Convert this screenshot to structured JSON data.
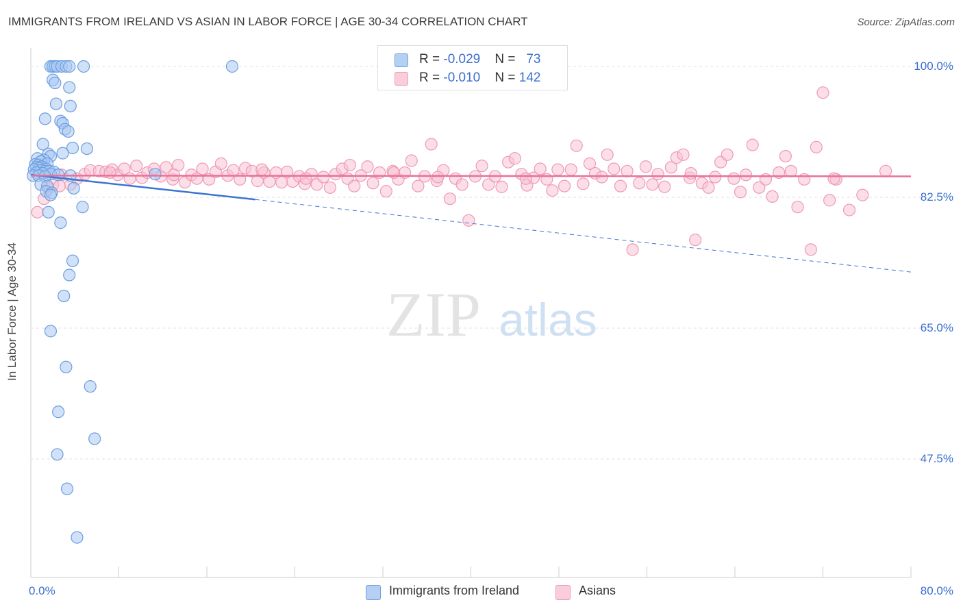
{
  "title": "IMMIGRANTS FROM IRELAND VS ASIAN IN LABOR FORCE | AGE 30-34 CORRELATION CHART",
  "source": "Source: ZipAtlas.com",
  "watermark": {
    "zip": "ZIP",
    "atlas": "atlas"
  },
  "legend": {
    "ireland": {
      "r_label": "R = ",
      "r_value": "-0.029",
      "n_label": "N = ",
      "n_value": "73"
    },
    "asians": {
      "r_label": "R = ",
      "r_value": "-0.010",
      "n_label": "N = ",
      "n_value": "142"
    }
  },
  "bottom_legend": {
    "ireland": "Immigrants from Ireland",
    "asians": "Asians"
  },
  "colors": {
    "ireland_fill": "#a9c8f2",
    "ireland_stroke": "#6b9ee0",
    "ireland_line": "#3b74d4",
    "asians_fill": "#f8c3d3",
    "asians_stroke": "#ee9ab4",
    "asians_line": "#e9709a",
    "axis_text": "#3b6fcf",
    "grid": "#e0e0e0"
  },
  "chart_data": {
    "type": "scatter",
    "title": "IMMIGRANTS FROM IRELAND VS ASIAN IN LABOR FORCE | AGE 30-34 CORRELATION CHART",
    "xlabel": "",
    "ylabel": "In Labor Force | Age 30-34",
    "xlim": [
      0,
      80
    ],
    "ylim": [
      32,
      102
    ],
    "x_tick_labels": [
      "0.0%",
      "80.0%"
    ],
    "y_ticks": [
      47.5,
      65.0,
      82.5,
      100.0
    ],
    "y_tick_labels": [
      "47.5%",
      "65.0%",
      "82.5%",
      "100.0%"
    ],
    "series": [
      {
        "name": "Immigrants from Ireland",
        "R": -0.029,
        "N": 73,
        "trend": {
          "x": [
            0,
            20.4
          ],
          "y": [
            85.5,
            82.2
          ]
        },
        "trend_dashed": {
          "x": [
            20.4,
            80
          ],
          "y": [
            82.2,
            72.5
          ]
        },
        "points": [
          [
            1.8,
            100
          ],
          [
            2.0,
            100
          ],
          [
            2.2,
            100
          ],
          [
            2.4,
            100
          ],
          [
            2.8,
            100
          ],
          [
            3.2,
            100
          ],
          [
            3.5,
            100
          ],
          [
            4.8,
            100
          ],
          [
            18.3,
            100
          ],
          [
            2.0,
            98.2
          ],
          [
            2.2,
            97.8
          ],
          [
            3.5,
            97.2
          ],
          [
            2.3,
            95.0
          ],
          [
            3.6,
            94.7
          ],
          [
            1.3,
            93.0
          ],
          [
            2.7,
            92.7
          ],
          [
            2.9,
            92.4
          ],
          [
            3.1,
            91.6
          ],
          [
            3.4,
            91.3
          ],
          [
            1.1,
            89.6
          ],
          [
            3.8,
            89.1
          ],
          [
            5.1,
            89.0
          ],
          [
            2.9,
            88.4
          ],
          [
            1.6,
            88.3
          ],
          [
            1.8,
            88.0
          ],
          [
            0.6,
            87.7
          ],
          [
            1.2,
            87.5
          ],
          [
            0.9,
            87.3
          ],
          [
            1.5,
            87.0
          ],
          [
            0.4,
            86.9
          ],
          [
            0.7,
            86.8
          ],
          [
            1.0,
            86.6
          ],
          [
            0.5,
            86.5
          ],
          [
            0.8,
            86.4
          ],
          [
            1.4,
            86.3
          ],
          [
            0.3,
            86.2
          ],
          [
            0.9,
            86.1
          ],
          [
            1.3,
            86.0
          ],
          [
            1.7,
            86.0
          ],
          [
            2.1,
            85.9
          ],
          [
            0.5,
            85.8
          ],
          [
            1.1,
            85.7
          ],
          [
            1.8,
            85.6
          ],
          [
            2.5,
            85.5
          ],
          [
            0.2,
            85.4
          ],
          [
            0.7,
            85.4
          ],
          [
            1.3,
            85.3
          ],
          [
            3.6,
            85.4
          ],
          [
            11.3,
            85.6
          ],
          [
            0.9,
            84.2
          ],
          [
            1.5,
            84.0
          ],
          [
            3.9,
            83.7
          ],
          [
            1.4,
            83.3
          ],
          [
            1.9,
            83.1
          ],
          [
            1.8,
            82.8
          ],
          [
            4.7,
            81.2
          ],
          [
            1.6,
            80.5
          ],
          [
            2.7,
            79.1
          ],
          [
            3.8,
            74.0
          ],
          [
            3.5,
            72.1
          ],
          [
            3.0,
            69.3
          ],
          [
            1.8,
            64.6
          ],
          [
            3.2,
            59.8
          ],
          [
            5.4,
            57.2
          ],
          [
            2.5,
            53.8
          ],
          [
            5.8,
            50.2
          ],
          [
            2.4,
            48.1
          ],
          [
            3.3,
            43.5
          ],
          [
            4.2,
            37.0
          ]
        ]
      },
      {
        "name": "Asians",
        "R": -0.01,
        "N": 142,
        "trend": {
          "x": [
            0,
            80
          ],
          "y": [
            85.4,
            85.3
          ]
        },
        "points": [
          [
            0.6,
            80.5
          ],
          [
            1.2,
            82.3
          ],
          [
            1.6,
            83.7
          ],
          [
            2.0,
            84.2
          ],
          [
            2.8,
            85.5
          ],
          [
            3.6,
            84.2
          ],
          [
            4.2,
            85.0
          ],
          [
            4.9,
            85.6
          ],
          [
            5.4,
            86.1
          ],
          [
            6.2,
            86.0
          ],
          [
            6.8,
            85.9
          ],
          [
            7.4,
            86.2
          ],
          [
            7.9,
            85.5
          ],
          [
            8.5,
            86.3
          ],
          [
            9.0,
            85.0
          ],
          [
            9.6,
            86.7
          ],
          [
            10.1,
            85.1
          ],
          [
            10.6,
            85.8
          ],
          [
            11.2,
            86.3
          ],
          [
            11.8,
            85.3
          ],
          [
            12.3,
            86.5
          ],
          [
            12.9,
            84.9
          ],
          [
            13.4,
            86.8
          ],
          [
            14.0,
            84.5
          ],
          [
            14.6,
            85.5
          ],
          [
            15.1,
            85.0
          ],
          [
            15.6,
            86.3
          ],
          [
            16.2,
            84.9
          ],
          [
            16.8,
            85.9
          ],
          [
            17.3,
            87.0
          ],
          [
            17.9,
            85.4
          ],
          [
            18.4,
            86.1
          ],
          [
            19.0,
            84.9
          ],
          [
            19.5,
            86.4
          ],
          [
            20.1,
            86.0
          ],
          [
            20.6,
            84.7
          ],
          [
            21.2,
            85.8
          ],
          [
            21.7,
            84.6
          ],
          [
            22.3,
            85.8
          ],
          [
            22.8,
            84.5
          ],
          [
            23.3,
            85.9
          ],
          [
            23.8,
            84.6
          ],
          [
            24.4,
            85.3
          ],
          [
            24.9,
            84.3
          ],
          [
            25.5,
            85.6
          ],
          [
            26.0,
            84.2
          ],
          [
            26.6,
            85.2
          ],
          [
            27.2,
            83.8
          ],
          [
            27.7,
            85.6
          ],
          [
            28.3,
            86.3
          ],
          [
            28.8,
            85.0
          ],
          [
            29.4,
            84.0
          ],
          [
            30.0,
            85.4
          ],
          [
            30.6,
            86.6
          ],
          [
            31.1,
            84.4
          ],
          [
            31.7,
            85.8
          ],
          [
            32.3,
            83.3
          ],
          [
            32.9,
            86.0
          ],
          [
            33.4,
            84.9
          ],
          [
            34.0,
            85.8
          ],
          [
            34.6,
            87.4
          ],
          [
            35.2,
            84.0
          ],
          [
            35.8,
            85.3
          ],
          [
            36.4,
            89.6
          ],
          [
            36.9,
            84.7
          ],
          [
            37.5,
            86.1
          ],
          [
            38.1,
            82.3
          ],
          [
            38.6,
            85.0
          ],
          [
            39.2,
            84.2
          ],
          [
            39.8,
            79.4
          ],
          [
            40.4,
            85.3
          ],
          [
            41.0,
            86.7
          ],
          [
            41.6,
            84.2
          ],
          [
            42.2,
            85.3
          ],
          [
            42.8,
            83.9
          ],
          [
            43.4,
            87.2
          ],
          [
            44.0,
            87.7
          ],
          [
            44.6,
            85.6
          ],
          [
            45.1,
            84.1
          ],
          [
            45.7,
            85.1
          ],
          [
            46.3,
            86.3
          ],
          [
            46.9,
            84.9
          ],
          [
            47.4,
            83.4
          ],
          [
            47.9,
            86.2
          ],
          [
            48.5,
            84.0
          ],
          [
            49.1,
            86.2
          ],
          [
            49.6,
            89.4
          ],
          [
            50.2,
            84.3
          ],
          [
            50.8,
            87.0
          ],
          [
            51.3,
            85.7
          ],
          [
            51.9,
            85.2
          ],
          [
            52.4,
            88.2
          ],
          [
            53.0,
            86.3
          ],
          [
            53.6,
            84.0
          ],
          [
            54.2,
            86.0
          ],
          [
            54.7,
            75.5
          ],
          [
            55.3,
            84.4
          ],
          [
            55.9,
            86.6
          ],
          [
            56.5,
            84.2
          ],
          [
            57.0,
            85.6
          ],
          [
            57.6,
            83.9
          ],
          [
            58.2,
            86.5
          ],
          [
            58.7,
            87.8
          ],
          [
            59.3,
            88.2
          ],
          [
            59.9,
            85.1
          ],
          [
            60.4,
            76.8
          ],
          [
            61.0,
            84.4
          ],
          [
            61.6,
            83.8
          ],
          [
            62.2,
            85.2
          ],
          [
            62.7,
            87.2
          ],
          [
            63.3,
            88.2
          ],
          [
            63.9,
            85.0
          ],
          [
            64.5,
            83.2
          ],
          [
            65.0,
            85.5
          ],
          [
            65.6,
            89.5
          ],
          [
            66.2,
            83.8
          ],
          [
            66.8,
            84.9
          ],
          [
            67.4,
            82.6
          ],
          [
            68.0,
            85.8
          ],
          [
            68.6,
            88.0
          ],
          [
            69.1,
            86.0
          ],
          [
            69.7,
            81.2
          ],
          [
            70.3,
            84.9
          ],
          [
            70.9,
            75.5
          ],
          [
            71.4,
            89.2
          ],
          [
            72.0,
            96.5
          ],
          [
            72.6,
            82.1
          ],
          [
            73.2,
            84.9
          ],
          [
            74.4,
            80.8
          ],
          [
            75.6,
            82.8
          ],
          [
            77.7,
            86.0
          ],
          [
            2.6,
            84.0
          ],
          [
            7.2,
            85.8
          ],
          [
            13.0,
            85.5
          ],
          [
            25.0,
            85.0
          ],
          [
            33.0,
            85.8
          ],
          [
            37.0,
            85.2
          ],
          [
            45.0,
            85.0
          ],
          [
            60.0,
            85.7
          ],
          [
            73.0,
            85.0
          ],
          [
            21.0,
            86.2
          ],
          [
            29.0,
            86.8
          ]
        ]
      }
    ]
  }
}
